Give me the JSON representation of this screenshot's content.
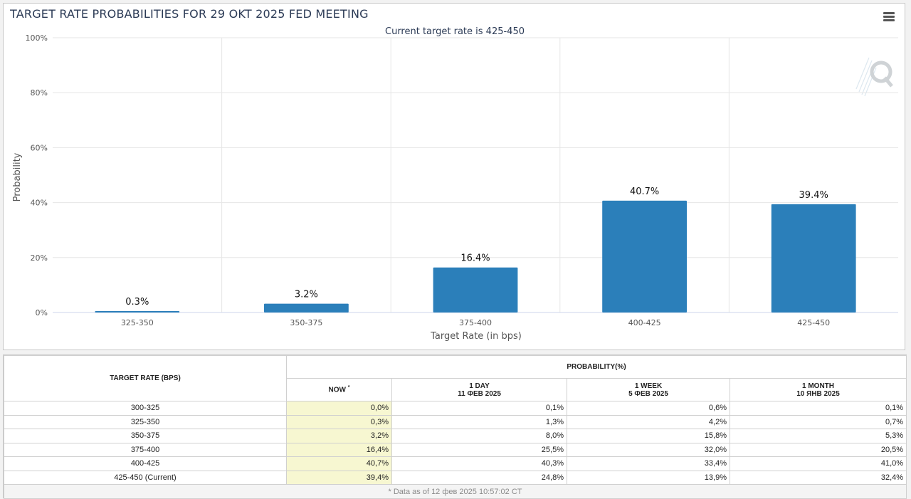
{
  "chart_title": "TARGET RATE PROBABILITIES FOR 29 OKT 2025 FED MEETING",
  "menu_icon": "hamburger-menu-icon",
  "logo_icon": "q-logo-icon",
  "chart_data": {
    "type": "bar",
    "title": "TARGET RATE PROBABILITIES FOR 29 OKT 2025 FED MEETING",
    "subtitle": "Current target rate is 425-450",
    "xlabel": "Target Rate (in bps)",
    "ylabel": "Probability",
    "categories": [
      "325-350",
      "350-375",
      "375-400",
      "400-425",
      "425-450"
    ],
    "values": [
      0.3,
      3.2,
      16.4,
      40.7,
      39.4
    ],
    "data_labels": [
      "0.3%",
      "3.2%",
      "16.4%",
      "40.7%",
      "39.4%"
    ],
    "ylim": [
      0,
      100
    ],
    "yticks": [
      0,
      20,
      40,
      60,
      80,
      100
    ],
    "ytick_labels": [
      "0%",
      "20%",
      "40%",
      "60%",
      "80%",
      "100%"
    ],
    "grid": true,
    "legend": "none",
    "bar_color": "#2b7fba"
  },
  "table": {
    "rate_header": "TARGET RATE (BPS)",
    "prob_header": "PROBABILITY(%)",
    "columns": [
      {
        "line1": "NOW",
        "line2": "",
        "sup": "*"
      },
      {
        "line1": "1 DAY",
        "line2": "11 ФЕВ 2025",
        "sup": ""
      },
      {
        "line1": "1 WEEK",
        "line2": "5 ФЕВ 2025",
        "sup": ""
      },
      {
        "line1": "1 MONTH",
        "line2": "10 ЯНВ 2025",
        "sup": ""
      }
    ],
    "rows": [
      {
        "rate": "300-325",
        "now": "0,0%",
        "day": "0,1%",
        "week": "0,6%",
        "month": "0,1%"
      },
      {
        "rate": "325-350",
        "now": "0,3%",
        "day": "1,3%",
        "week": "4,2%",
        "month": "0,7%"
      },
      {
        "rate": "350-375",
        "now": "3,2%",
        "day": "8,0%",
        "week": "15,8%",
        "month": "5,3%"
      },
      {
        "rate": "375-400",
        "now": "16,4%",
        "day": "25,5%",
        "week": "32,0%",
        "month": "20,5%"
      },
      {
        "rate": "400-425",
        "now": "40,7%",
        "day": "40,3%",
        "week": "33,4%",
        "month": "41,0%"
      },
      {
        "rate": "425-450 (Current)",
        "now": "39,4%",
        "day": "24,8%",
        "week": "13,9%",
        "month": "32,4%"
      }
    ],
    "footnote": "* Data as of 12 фев 2025 10:57:02 CT",
    "now_highlight_color": "#f7f7d1"
  }
}
